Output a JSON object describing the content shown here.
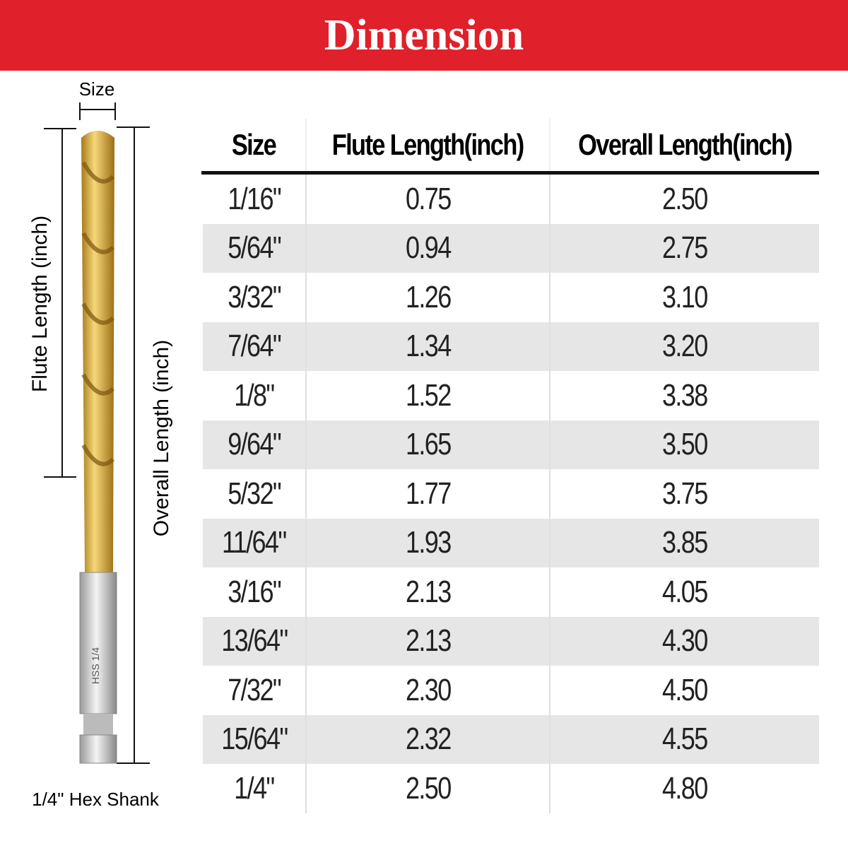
{
  "header": {
    "title": "Dimension"
  },
  "diagram": {
    "size_label": "Size",
    "flute_label": "Flute Length (inch)",
    "overall_label": "Overall Length (inch)",
    "shank_mark": "HSS 1/4",
    "shank_label": "1/4\" Hex Shank"
  },
  "table": {
    "columns": [
      "Size",
      "Flute Length(inch)",
      "Overall Length(inch)"
    ],
    "rows": [
      [
        "1/16\"",
        "0.75",
        "2.50"
      ],
      [
        "5/64\"",
        "0.94",
        "2.75"
      ],
      [
        "3/32\"",
        "1.26",
        "3.10"
      ],
      [
        "7/64\"",
        "1.34",
        "3.20"
      ],
      [
        "1/8\"",
        "1.52",
        "3.38"
      ],
      [
        "9/64\"",
        "1.65",
        "3.50"
      ],
      [
        "5/32\"",
        "1.77",
        "3.75"
      ],
      [
        "11/64\"",
        "1.93",
        "3.85"
      ],
      [
        "3/16\"",
        "2.13",
        "4.05"
      ],
      [
        "13/64\"",
        "2.13",
        "4.30"
      ],
      [
        "7/32\"",
        "2.30",
        "4.50"
      ],
      [
        "15/64\"",
        "2.32",
        "4.55"
      ],
      [
        "1/4\"",
        "2.50",
        "4.80"
      ]
    ]
  }
}
